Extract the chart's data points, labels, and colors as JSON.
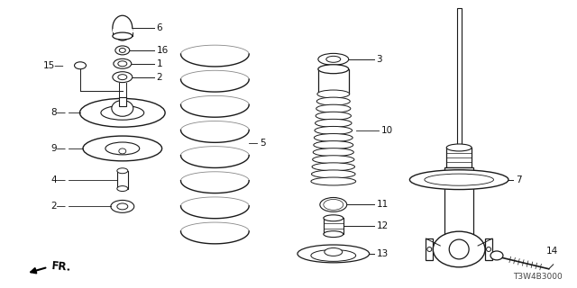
{
  "part_code": "T3W4B3000",
  "fr_label": "FR.",
  "bg": "#ffffff",
  "lc": "#1a1a1a",
  "parts_label_color": "#111111"
}
